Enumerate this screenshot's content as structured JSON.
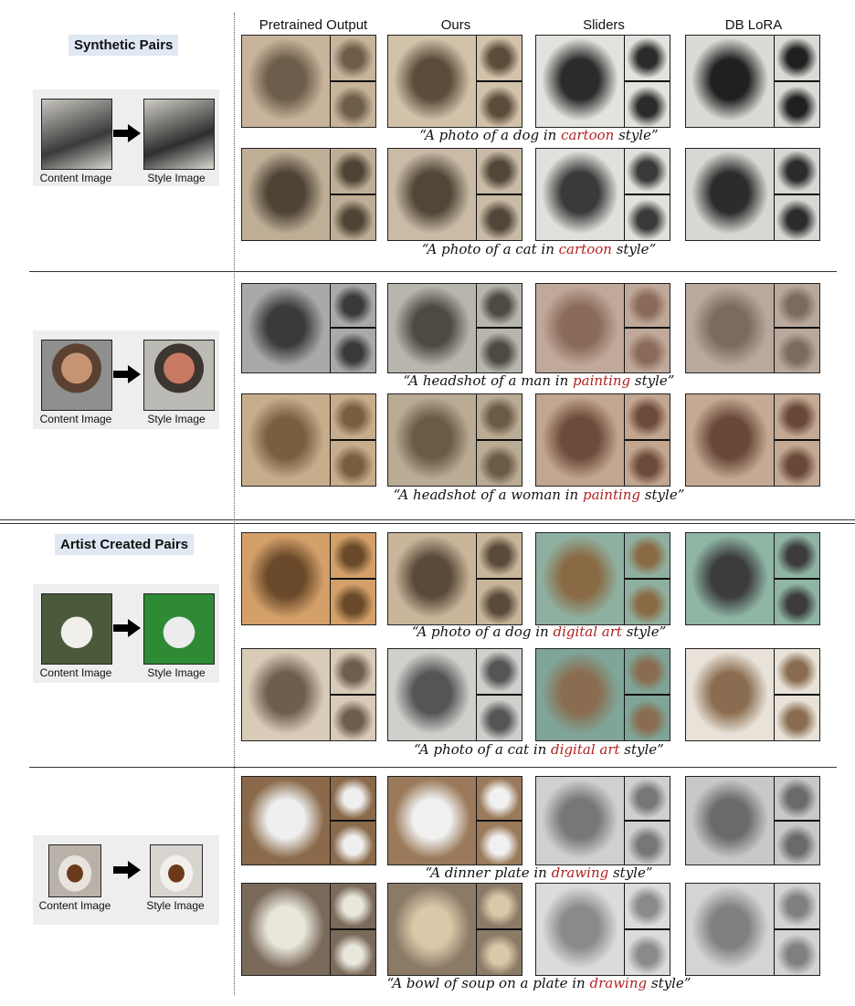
{
  "columns": [
    "Pretrained Output",
    "Ours",
    "Sliders",
    "DB LoRA"
  ],
  "tags": {
    "synthetic": "Synthetic Pairs",
    "artist": "Artist Created Pairs"
  },
  "labels": {
    "content": "Content Image",
    "style": "Style Image"
  },
  "captions": [
    {
      "pre": "“A photo of a dog in ",
      "hl": "cartoon",
      "post": " style”"
    },
    {
      "pre": "“A photo of a cat in ",
      "hl": "cartoon",
      "post": " style”"
    },
    {
      "pre": "“A headshot of a man in ",
      "hl": "painting",
      "post": " style”"
    },
    {
      "pre": "“A headshot of a woman in ",
      "hl": "painting",
      "post": " style”"
    },
    {
      "pre": "“A photo of a dog in ",
      "hl": "digital art",
      "post": " style”"
    },
    {
      "pre": "“A photo of a cat in ",
      "hl": "digital art",
      "post": " style”"
    },
    {
      "pre": "“A dinner plate in ",
      "hl": "drawing",
      "post": " style”"
    },
    {
      "pre": "“A bowl of soup on a plate in ",
      "hl": "drawing",
      "post": " style”"
    }
  ],
  "colors": {
    "highlight": "#b22222",
    "tag_bg": "#dfe8f3",
    "pair_bg": "#eeeeee"
  }
}
